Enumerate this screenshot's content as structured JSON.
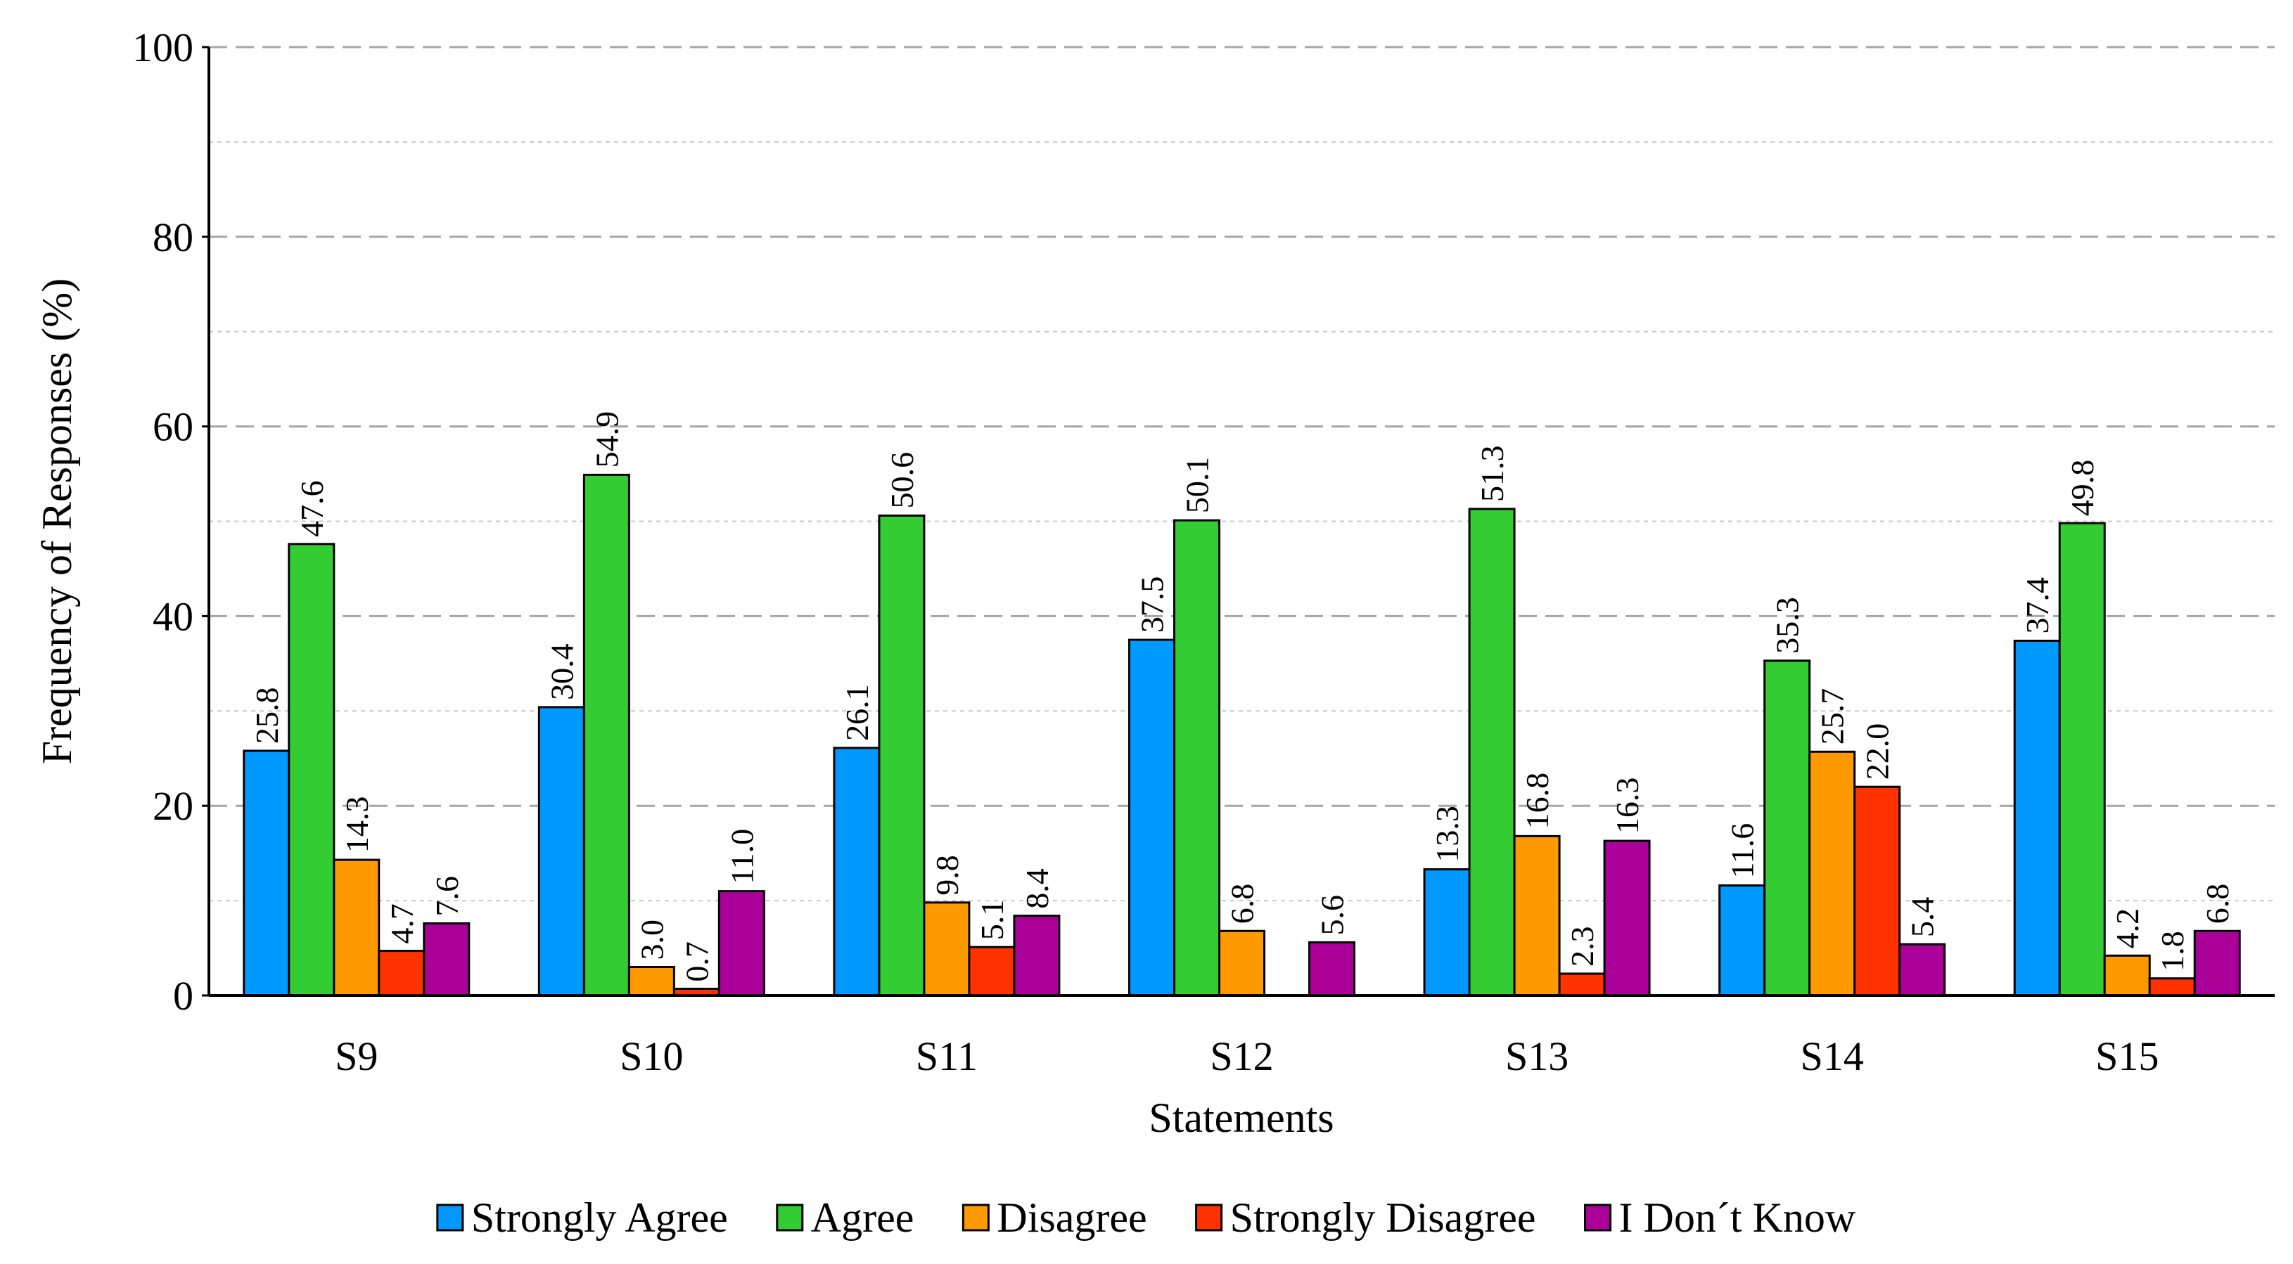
{
  "chart_data": {
    "type": "bar",
    "title": "",
    "xlabel": "Statements",
    "ylabel": "Frequency of Responses (%)",
    "ylim": [
      0,
      100
    ],
    "yticks": [
      0,
      20,
      40,
      60,
      80,
      100
    ],
    "grid": true,
    "legend_position": "bottom",
    "categories": [
      "S9",
      "S10",
      "S11",
      "S12",
      "S13",
      "S14",
      "S15"
    ],
    "series": [
      {
        "name": "Strongly Agree",
        "color": "#0099ff",
        "values": [
          25.8,
          30.4,
          26.1,
          37.5,
          13.3,
          11.6,
          37.4
        ],
        "labels": [
          "25.8",
          "30.4",
          "26.1",
          "37.5",
          "13.3",
          "11.6",
          "37.4"
        ]
      },
      {
        "name": "Agree",
        "color": "#33cc33",
        "values": [
          47.6,
          54.9,
          50.6,
          50.1,
          51.3,
          35.3,
          49.8
        ],
        "labels": [
          "47.6",
          "54.9",
          "50.6",
          "50.1",
          "51.3",
          "35.3",
          "49.8"
        ]
      },
      {
        "name": "Disagree",
        "color": "#ff9900",
        "values": [
          14.3,
          3.0,
          9.8,
          6.8,
          16.8,
          25.7,
          4.2
        ],
        "labels": [
          "14.3",
          "3.0",
          "9.8",
          "6.8",
          "16.8",
          "25.7",
          "4.2"
        ]
      },
      {
        "name": "Strongly Disagree",
        "color": "#ff3300",
        "values": [
          4.7,
          0.7,
          5.1,
          null,
          2.3,
          22.0,
          1.8
        ],
        "labels": [
          "4.7",
          "0.7",
          "5.1",
          null,
          "2.3",
          "22.0",
          "1.8"
        ]
      },
      {
        "name": "I Don´t Know",
        "color": "#aa0099",
        "values": [
          7.6,
          11.0,
          8.4,
          5.6,
          16.3,
          5.4,
          6.8
        ],
        "labels": [
          "7.6",
          "11.0",
          "8.4",
          "5.6",
          "16.3",
          "5.4",
          "6.8"
        ]
      }
    ]
  }
}
